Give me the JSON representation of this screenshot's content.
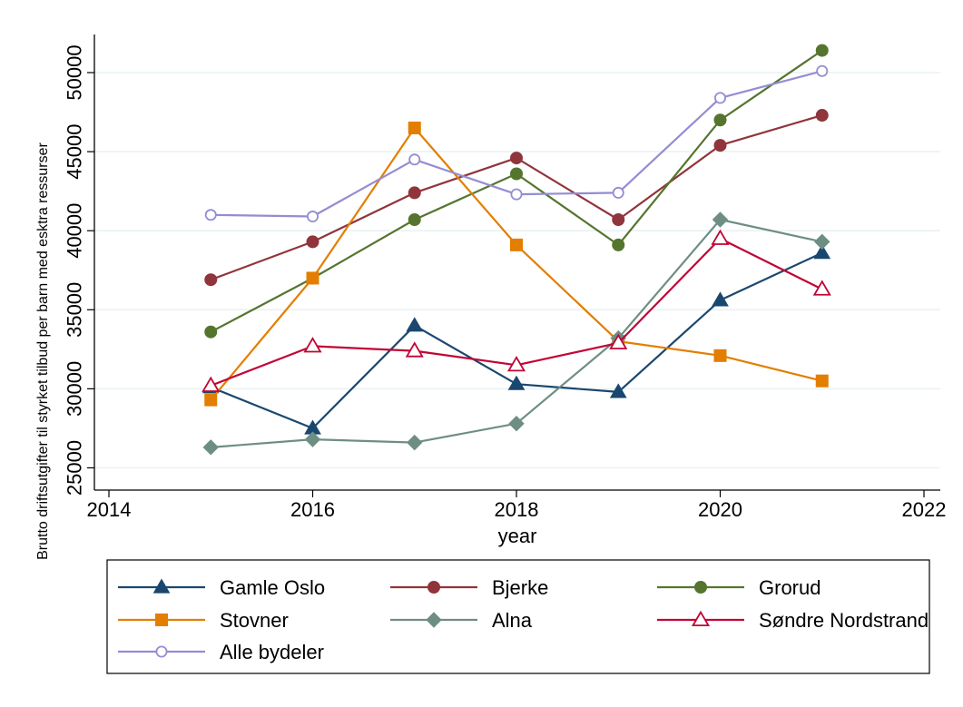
{
  "chart_data": {
    "type": "line",
    "xlabel": "year",
    "ylabel": "Brutto driftsutgifter til styrket tilbud per barn med esktra ressurser",
    "xlim": [
      2014,
      2022
    ],
    "ylim": [
      25000,
      52500
    ],
    "x_ticks": [
      "2014",
      "2016",
      "2018",
      "2020",
      "2022"
    ],
    "y_ticks": [
      "25000",
      "30000",
      "35000",
      "40000",
      "45000",
      "50000"
    ],
    "grid": "horizontal",
    "legend_position": "bottom",
    "x": [
      2015,
      2016,
      2017,
      2018,
      2019,
      2020,
      2021
    ],
    "series": [
      {
        "name": "Gamle Oslo",
        "color": "#1a476f",
        "marker": "triangle-filled",
        "values": [
          30100,
          27500,
          34000,
          30300,
          29800,
          35600,
          38600
        ]
      },
      {
        "name": "Bjerke",
        "color": "#90353b",
        "marker": "circle-filled",
        "values": [
          36900,
          39300,
          42400,
          44600,
          40700,
          45400,
          47300
        ]
      },
      {
        "name": "Grorud",
        "color": "#55752f",
        "marker": "circle-filled",
        "values": [
          33600,
          37000,
          40700,
          43600,
          39100,
          47000,
          51400
        ]
      },
      {
        "name": "Stovner",
        "color": "#e37e00",
        "marker": "square-filled",
        "values": [
          29300,
          37000,
          46500,
          39100,
          33000,
          32100,
          30500
        ]
      },
      {
        "name": "Alna",
        "color": "#6e8e84",
        "marker": "diamond-filled",
        "values": [
          26300,
          26800,
          26600,
          27800,
          33200,
          40700,
          39300
        ]
      },
      {
        "name": "Søndre Nordstrand",
        "color": "#c10534",
        "marker": "triangle-hollow",
        "values": [
          30200,
          32700,
          32400,
          31500,
          32900,
          39500,
          36300
        ]
      },
      {
        "name": "Alle bydeler",
        "color": "#938dd2",
        "marker": "circle-hollow",
        "values": [
          41000,
          40900,
          44500,
          42300,
          42400,
          48400,
          50100
        ]
      }
    ]
  }
}
